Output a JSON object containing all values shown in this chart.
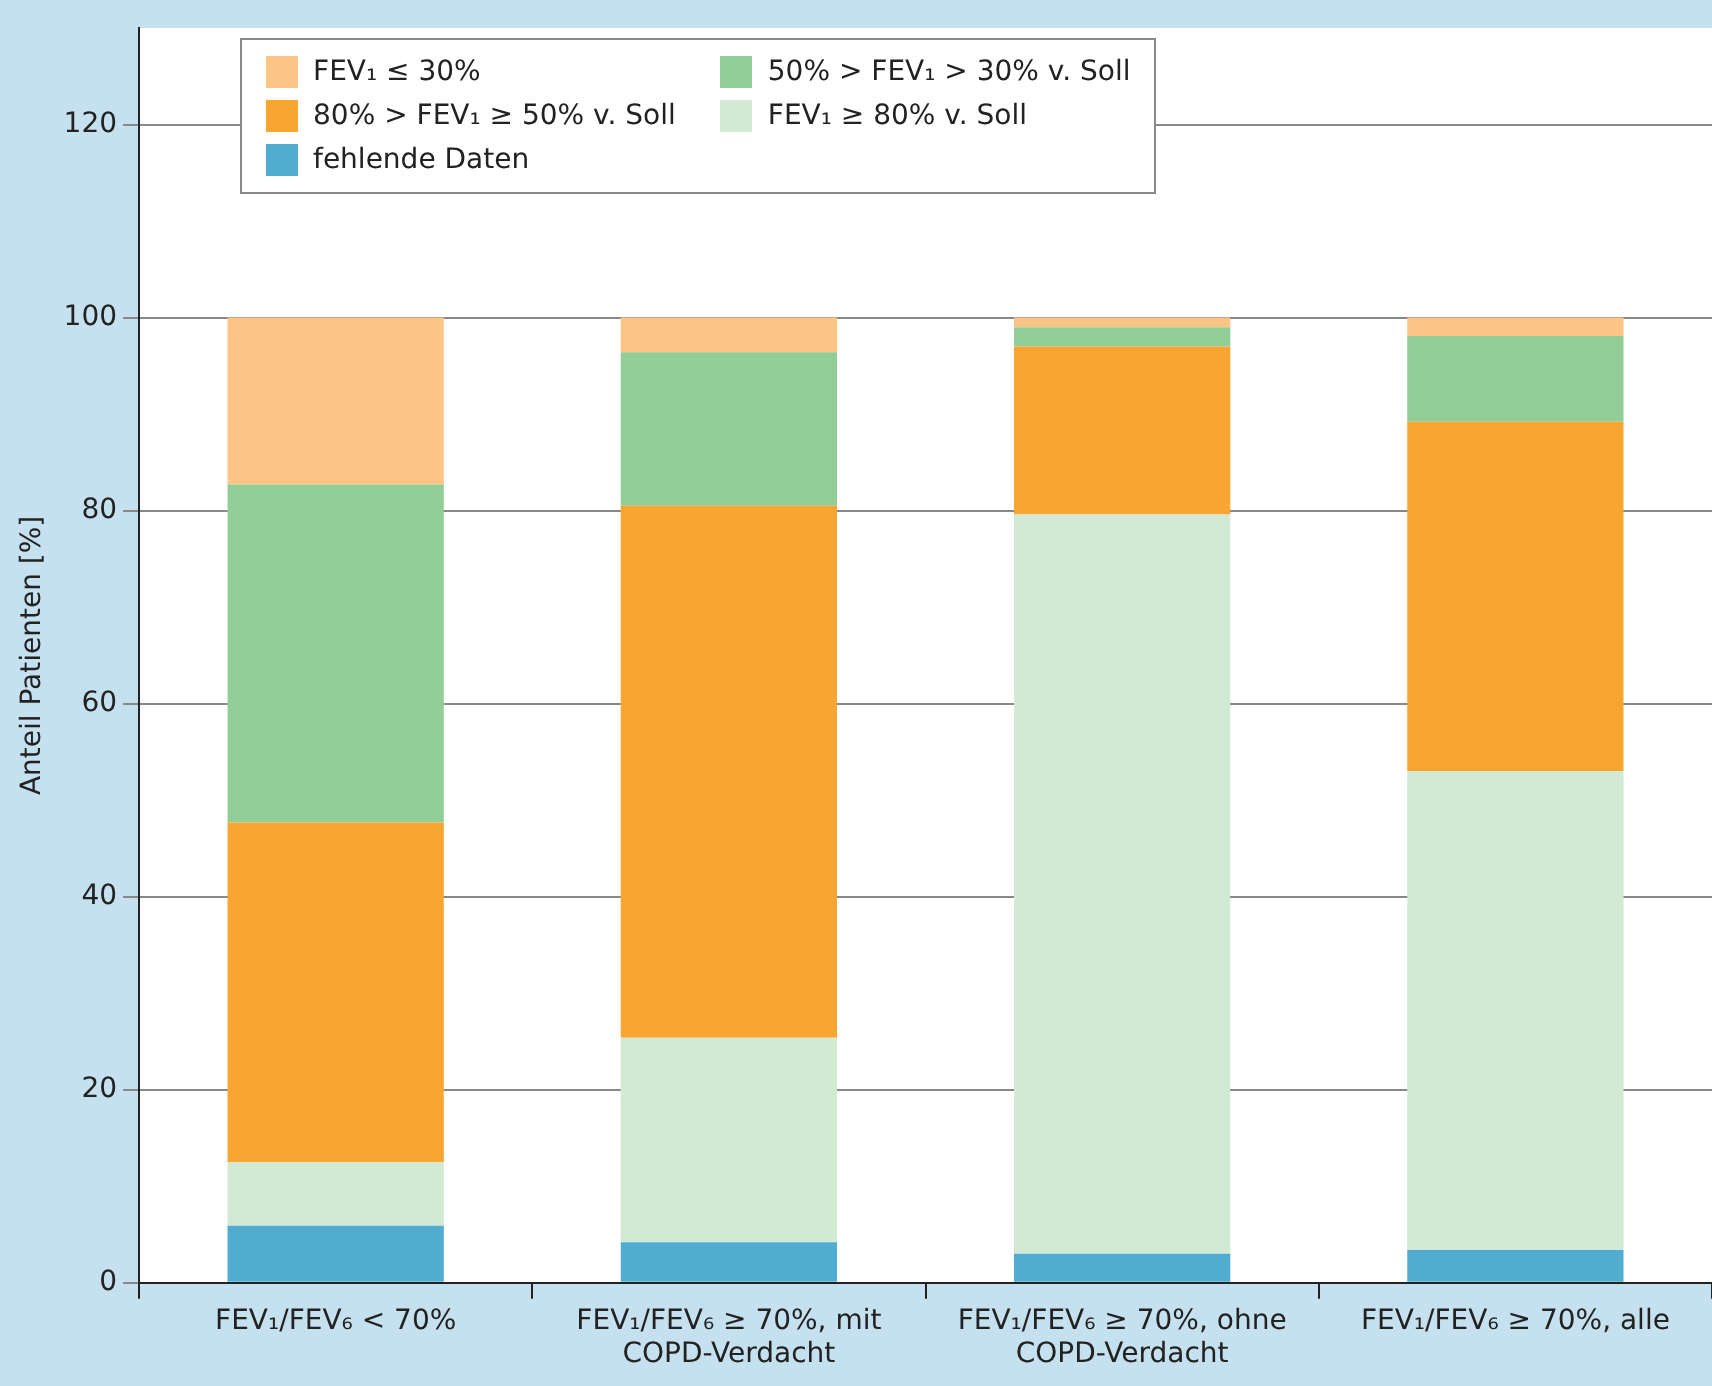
{
  "chart_data": {
    "type": "bar",
    "stacked": true,
    "ylabel": "Anteil Patienten [%]",
    "categories": [
      "FEV₁/FEV₆ < 70%",
      "FEV₁/FEV₆ ≥ 70%, mit COPD-Verdacht",
      "FEV₁/FEV₆ ≥ 70%, ohne COPD-Verdacht",
      "FEV₁/FEV₆ ≥ 70%, alle"
    ],
    "series": [
      {
        "name": "fehlende Daten",
        "color": "#51acd2",
        "values": [
          5.9,
          4.2,
          3.0,
          3.4
        ]
      },
      {
        "name": "FEV₁ ≥ 80% v. Soll",
        "color": "#d2e9d3",
        "values": [
          6.6,
          21.2,
          76.6,
          49.6
        ]
      },
      {
        "name": "80% > FEV₁ ≥ 50% v. Soll",
        "color": "#f9a532",
        "values": [
          35.2,
          55.1,
          17.4,
          36.2
        ]
      },
      {
        "name": "50% > FEV₁ > 30% v. Soll",
        "color": "#91cd97",
        "values": [
          35.0,
          15.9,
          2.0,
          8.9
        ]
      },
      {
        "name": "FEV₁ ≤ 30%",
        "color": "#fdc585",
        "values": [
          17.3,
          3.6,
          1.0,
          1.9
        ]
      }
    ],
    "ylim": [
      0,
      130
    ],
    "yticks": [
      0,
      20,
      40,
      60,
      80,
      100,
      120
    ],
    "grid": "y",
    "legend": "top left"
  }
}
